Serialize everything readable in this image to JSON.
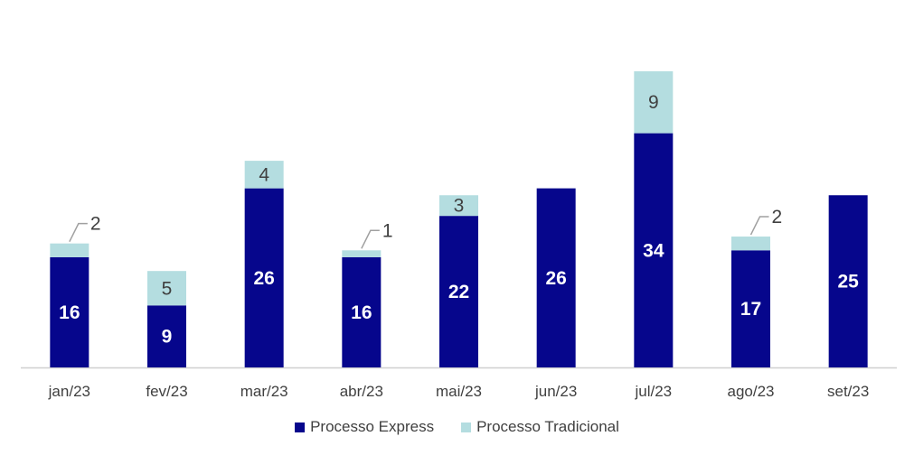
{
  "colors": {
    "express": "#06068C",
    "tradicional": "#B4DDE0",
    "axis": "#D0D0D0",
    "text": "#404040",
    "leader": "#A0A0A0"
  },
  "chart_data": {
    "type": "bar",
    "stacked": true,
    "categories": [
      "jan/23",
      "fev/23",
      "mar/23",
      "abr/23",
      "mai/23",
      "jun/23",
      "jul/23",
      "ago/23",
      "set/23"
    ],
    "series": [
      {
        "name": "Processo Express",
        "values": [
          16,
          9,
          26,
          16,
          22,
          26,
          34,
          17,
          25
        ]
      },
      {
        "name": "Processo Tradicional",
        "values": [
          2,
          5,
          4,
          1,
          3,
          0,
          9,
          2,
          0
        ]
      }
    ],
    "ylim": [
      0,
      45
    ],
    "grid": false,
    "legend_position": "bottom"
  }
}
